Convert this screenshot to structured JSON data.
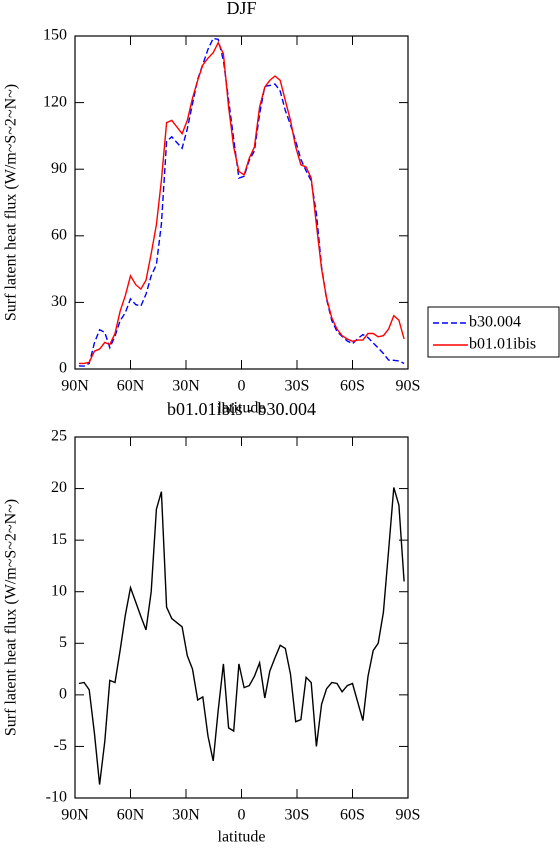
{
  "chart_data": [
    {
      "type": "line",
      "title": "DJF",
      "xlabel": "latitude",
      "ylabel": "Surf latent heat flux (W/m~S~2~N~)",
      "xlim": [
        90,
        -90
      ],
      "xticks": [
        {
          "value": 90,
          "label": "90N"
        },
        {
          "value": 60,
          "label": "60N"
        },
        {
          "value": 30,
          "label": "30N"
        },
        0,
        {
          "value": -30,
          "label": "30S"
        },
        {
          "value": -60,
          "label": "60S"
        },
        {
          "value": -90,
          "label": "90S"
        }
      ],
      "ylim": [
        0,
        150
      ],
      "yticks": [
        0,
        30,
        60,
        90,
        120,
        150
      ],
      "legend": "right",
      "x": [
        87.9,
        85.1,
        82.3,
        79.5,
        76.7,
        73.9,
        71.2,
        68.4,
        65.6,
        62.8,
        60.0,
        57.2,
        54.4,
        51.6,
        48.8,
        46.0,
        43.3,
        40.5,
        37.7,
        34.9,
        32.1,
        29.3,
        26.5,
        23.7,
        20.9,
        18.1,
        15.3,
        12.6,
        9.8,
        7.0,
        4.2,
        1.4,
        -1.4,
        -4.2,
        -7.0,
        -9.8,
        -12.6,
        -15.3,
        -18.1,
        -20.9,
        -23.7,
        -26.5,
        -29.3,
        -32.1,
        -34.9,
        -37.7,
        -40.5,
        -43.3,
        -46.0,
        -48.8,
        -51.6,
        -54.4,
        -57.2,
        -60.0,
        -62.8,
        -65.6,
        -68.4,
        -71.2,
        -73.9,
        -76.7,
        -79.5,
        -82.3,
        -85.1,
        -87.9
      ],
      "series": [
        {
          "name": "b30.004",
          "color": "#0000ff",
          "dash": true,
          "values": [
            1.4,
            1.3,
            2.5,
            11.7,
            17.7,
            16.5,
            9.6,
            14.8,
            21.7,
            25.3,
            31.6,
            29.0,
            28.4,
            33.7,
            42,
            47,
            65.3,
            102.5,
            104.6,
            102,
            99.4,
            108.2,
            119.5,
            130.5,
            137.2,
            144,
            148.9,
            148.5,
            139,
            121.2,
            103.5,
            86,
            86.8,
            94.1,
            98.2,
            114.9,
            127.3,
            127.7,
            128.4,
            125.2,
            116.5,
            110,
            102.6,
            94.4,
            89.3,
            84.8,
            70,
            45.9,
            31.4,
            21.8,
            16.9,
            14.7,
            12.6,
            11.4,
            13.7,
            15.5,
            14.2,
            11.7,
            9.5,
            7,
            4,
            3.9,
            3.6,
            2.5
          ]
        },
        {
          "name": "b01.01ibis",
          "color": "#ff0000",
          "dash": false,
          "values": [
            2.5,
            2.5,
            3,
            8,
            9,
            12,
            11,
            16,
            26,
            33,
            42,
            38,
            36,
            40,
            52,
            65,
            85,
            111,
            112,
            109,
            106,
            112,
            122,
            130,
            137,
            140,
            142.5,
            147,
            142,
            118,
            100,
            89,
            87.5,
            95,
            100,
            118,
            127,
            130,
            132,
            130,
            121,
            112,
            100,
            92,
            91,
            86,
            65,
            45,
            32,
            23,
            18,
            15,
            13.5,
            12.5,
            13,
            13,
            16,
            16,
            14.5,
            15,
            18,
            24,
            22,
            13.5
          ]
        }
      ]
    },
    {
      "type": "line",
      "title": "b01.01ibis - b30.004",
      "xlabel": "latitude",
      "ylabel": "Surf latent heat flux (W/m~S~2~N~)",
      "xlim": [
        90,
        -90
      ],
      "xticks": [
        {
          "value": 90,
          "label": "90N"
        },
        {
          "value": 60,
          "label": "60N"
        },
        {
          "value": 30,
          "label": "30N"
        },
        0,
        {
          "value": -30,
          "label": "30S"
        },
        {
          "value": -60,
          "label": "60S"
        },
        {
          "value": -90,
          "label": "90S"
        }
      ],
      "ylim": [
        -10,
        25
      ],
      "yticks": [
        -10,
        -5,
        0,
        5,
        10,
        15,
        20,
        25
      ],
      "x": [
        87.9,
        85.1,
        82.3,
        79.5,
        76.7,
        73.9,
        71.2,
        68.4,
        65.6,
        62.8,
        60.0,
        57.2,
        54.4,
        51.6,
        48.8,
        46.0,
        43.3,
        40.5,
        37.7,
        34.9,
        32.1,
        29.3,
        26.5,
        23.7,
        20.9,
        18.1,
        15.3,
        12.6,
        9.8,
        7.0,
        4.2,
        1.4,
        -1.4,
        -4.2,
        -7.0,
        -9.8,
        -12.6,
        -15.3,
        -18.1,
        -20.9,
        -23.7,
        -26.5,
        -29.3,
        -32.1,
        -34.9,
        -37.7,
        -40.5,
        -43.3,
        -46.0,
        -48.8,
        -51.6,
        -54.4,
        -57.2,
        -60.0,
        -62.8,
        -65.6,
        -68.4,
        -71.2,
        -73.9,
        -76.7,
        -79.5,
        -82.3,
        -85.1,
        -87.9
      ],
      "series": [
        {
          "color": "#000000",
          "dash": false,
          "values": [
            1.1,
            1.2,
            0.5,
            -3.7,
            -8.7,
            -4.5,
            1.4,
            1.2,
            4.3,
            7.7,
            10.4,
            9.0,
            7.6,
            6.3,
            10,
            18,
            19.7,
            8.5,
            7.4,
            7.0,
            6.6,
            3.8,
            2.5,
            -0.5,
            -0.2,
            -4,
            -6.4,
            -1.5,
            3,
            -3.2,
            -3.5,
            3,
            0.7,
            0.9,
            1.8,
            3.1,
            -0.3,
            2.3,
            3.6,
            4.8,
            4.5,
            2,
            -2.6,
            -2.4,
            1.7,
            1.2,
            -5,
            -0.9,
            0.6,
            1.2,
            1.1,
            0.3,
            0.9,
            1.1,
            -0.7,
            -2.5,
            1.8,
            4.3,
            5,
            8,
            14,
            20.1,
            18.4,
            11
          ]
        }
      ]
    }
  ]
}
